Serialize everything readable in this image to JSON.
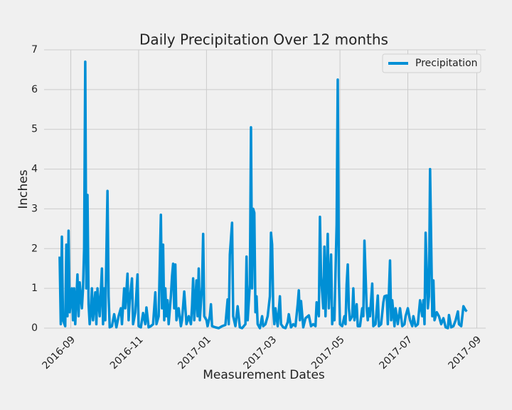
{
  "chart_data": {
    "type": "line",
    "title": "Daily Precipitation Over 12 months",
    "x_label": "Measurement Dates",
    "y_label": "Inches",
    "x": [
      -10,
      -9,
      -8,
      -7,
      -5,
      -4,
      -3,
      -2,
      -1,
      1,
      2,
      3,
      4,
      6,
      7,
      8,
      10,
      11,
      12,
      13,
      14,
      15,
      16,
      17,
      18,
      19,
      20,
      22,
      23,
      24,
      26,
      28,
      29,
      30,
      31,
      33,
      34,
      35,
      37,
      39,
      41,
      43,
      45,
      46,
      48,
      49,
      51,
      52,
      53,
      55,
      56,
      58,
      60,
      61,
      63,
      65,
      67,
      68,
      70,
      72,
      74,
      76,
      77,
      79,
      81,
      82,
      83,
      84,
      85,
      86,
      87,
      88,
      90,
      91,
      92,
      93,
      94,
      95,
      97,
      99,
      100,
      102,
      104,
      106,
      108,
      109,
      110,
      111,
      113,
      114,
      115,
      116,
      118,
      119,
      120,
      122,
      123,
      125,
      126,
      127,
      130,
      133,
      136,
      139,
      141,
      142,
      143,
      145,
      146,
      148,
      150,
      152,
      154,
      157,
      158,
      159,
      161,
      162,
      163,
      164,
      165,
      166,
      167,
      168,
      170,
      172,
      173,
      175,
      177,
      179,
      180,
      181,
      182,
      183,
      184,
      186,
      188,
      189,
      191,
      193,
      195,
      196,
      198,
      200,
      202,
      204,
      205,
      206,
      207,
      209,
      211,
      214,
      216,
      218,
      220,
      221,
      223,
      224,
      225,
      227,
      228,
      229,
      231,
      232,
      234,
      235,
      236,
      237,
      239,
      240,
      241,
      242,
      244,
      246,
      247,
      248,
      249,
      250,
      251,
      253,
      254,
      255,
      257,
      258,
      260,
      262,
      263,
      264,
      266,
      267,
      268,
      269,
      271,
      272,
      274,
      276,
      277,
      279,
      281,
      282,
      284,
      285,
      287,
      288,
      289,
      291,
      292,
      294,
      296,
      298,
      300,
      301,
      303,
      305,
      307,
      308,
      310,
      312,
      314,
      316,
      317,
      318,
      319,
      321,
      322,
      323,
      325,
      326,
      327,
      329,
      331,
      333,
      335,
      337,
      339,
      340,
      342,
      344,
      346,
      348,
      349,
      351,
      353,
      354,
      355,
      356
    ],
    "series": [
      {
        "name": "Precipitation",
        "color": "#008fd5",
        "values": [
          1.8,
          0.1,
          2.3,
          0.2,
          0.05,
          2.1,
          0.3,
          2.45,
          0.4,
          1.0,
          0.2,
          1.0,
          0.1,
          1.35,
          0.3,
          1.15,
          0.5,
          1.0,
          2.0,
          6.7,
          1.0,
          3.35,
          0.6,
          0.1,
          0.4,
          1.0,
          0.2,
          0.9,
          0.1,
          1.0,
          0.3,
          1.5,
          0.1,
          1.0,
          0.2,
          3.45,
          0.8,
          0.02,
          0.05,
          0.35,
          0.02,
          0.3,
          0.5,
          0.1,
          1.0,
          0.5,
          1.37,
          0.2,
          0.7,
          1.25,
          0.1,
          0.4,
          1.35,
          0.05,
          0.02,
          0.38,
          0.1,
          0.52,
          0.02,
          0.05,
          0.1,
          0.9,
          0.1,
          0.3,
          2.85,
          0.5,
          2.1,
          0.2,
          1.0,
          0.3,
          0.7,
          0.1,
          0.8,
          1.3,
          1.62,
          0.5,
          1.6,
          0.2,
          0.5,
          0.05,
          0.2,
          0.92,
          0.1,
          0.3,
          0.1,
          0.55,
          1.25,
          0.2,
          1.2,
          0.3,
          1.5,
          0.2,
          1.05,
          2.37,
          0.3,
          0.2,
          0.05,
          0.3,
          0.6,
          0.05,
          0.02,
          0,
          0.05,
          0.08,
          0.72,
          0.1,
          1.85,
          2.65,
          0.3,
          0.05,
          0.55,
          0.02,
          0,
          0.1,
          1.8,
          0.2,
          1.1,
          5.05,
          1.0,
          3.0,
          2.9,
          0.4,
          0.8,
          0.1,
          0,
          0.3,
          0.05,
          0.1,
          0.3,
          0.8,
          2.4,
          2.1,
          0.5,
          0.1,
          0.5,
          0.05,
          0.8,
          0.1,
          0.02,
          0,
          0.15,
          0.35,
          0.02,
          0.1,
          0.05,
          0.6,
          0.95,
          0.2,
          0.68,
          0.02,
          0.25,
          0.32,
          0.05,
          0.1,
          0.05,
          0.65,
          0.3,
          2.8,
          1.3,
          0.5,
          2.05,
          0.3,
          2.37,
          0.5,
          1.85,
          0.1,
          0.5,
          0.2,
          2.6,
          6.25,
          1.3,
          0.1,
          0.05,
          0.3,
          0.1,
          1.1,
          1.6,
          0.5,
          0.2,
          0.3,
          1.0,
          0.2,
          0.6,
          0.05,
          0.05,
          0.5,
          0.3,
          2.2,
          0.5,
          0.2,
          0.5,
          0.3,
          1.12,
          0.05,
          0.1,
          0.82,
          0.05,
          0.1,
          0.65,
          0.8,
          0.82,
          0.1,
          1.7,
          0.2,
          0.7,
          0.05,
          0.5,
          0.1,
          0.5,
          0.05,
          0.1,
          0.3,
          0.5,
          0.2,
          0.05,
          0.3,
          0.05,
          0.1,
          0.7,
          0.3,
          0.7,
          0.1,
          2.4,
          0.5,
          0.8,
          4.0,
          0.3,
          1.2,
          0.2,
          0.4,
          0.3,
          0.1,
          0.25,
          0.02,
          0,
          0.33,
          0.02,
          0.05,
          0.2,
          0.42,
          0.1,
          0.05,
          0.55,
          0.5,
          0.45,
          0.42
        ]
      }
    ],
    "xlim": [
      -24,
      373
    ],
    "xticks": [
      {
        "value": 0,
        "label": "2016-09"
      },
      {
        "value": 61,
        "label": "2016-11"
      },
      {
        "value": 122,
        "label": "2017-01"
      },
      {
        "value": 181,
        "label": "2017-03"
      },
      {
        "value": 242,
        "label": "2017-05"
      },
      {
        "value": 303,
        "label": "2017-07"
      },
      {
        "value": 365,
        "label": "2017-09"
      }
    ],
    "ylim": [
      0,
      7
    ],
    "yticks": [
      0,
      1,
      2,
      3,
      4,
      5,
      6,
      7
    ],
    "grid": true,
    "legend": "upper right"
  }
}
